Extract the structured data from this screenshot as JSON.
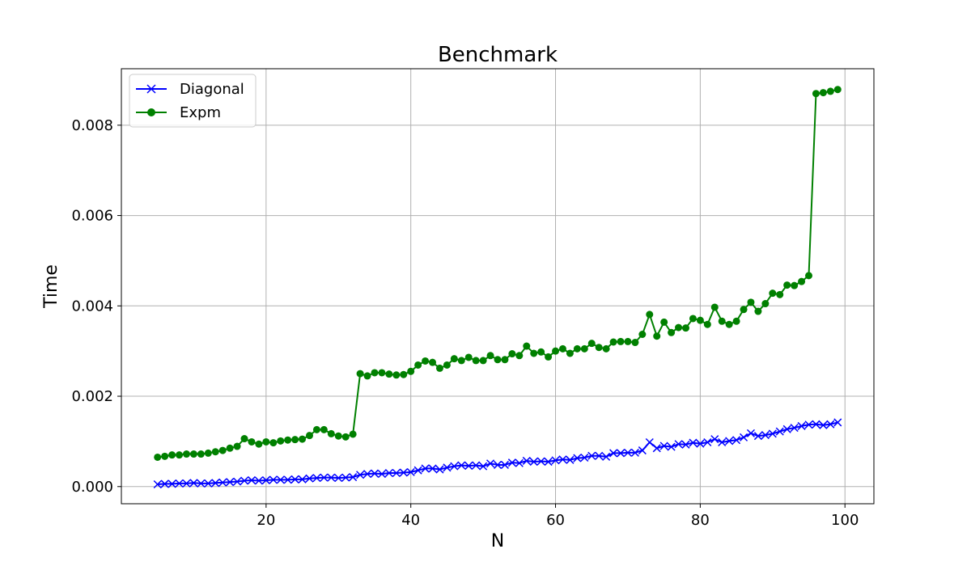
{
  "chart_data": {
    "type": "line",
    "title": "Benchmark",
    "xlabel": "N",
    "ylabel": "Time",
    "xlim": [
      0,
      104
    ],
    "ylim": [
      -0.00038,
      0.00925
    ],
    "xticks": [
      20,
      40,
      60,
      80,
      100
    ],
    "yticks": [
      0.0,
      0.002,
      0.004,
      0.006,
      0.008
    ],
    "ytick_labels": [
      "0.000",
      "0.002",
      "0.004",
      "0.006",
      "0.008"
    ],
    "grid": true,
    "legend_position": "upper-left",
    "x": [
      5,
      6,
      7,
      8,
      9,
      10,
      11,
      12,
      13,
      14,
      15,
      16,
      17,
      18,
      19,
      20,
      21,
      22,
      23,
      24,
      25,
      26,
      27,
      28,
      29,
      30,
      31,
      32,
      33,
      34,
      35,
      36,
      37,
      38,
      39,
      40,
      41,
      42,
      43,
      44,
      45,
      46,
      47,
      48,
      49,
      50,
      51,
      52,
      53,
      54,
      55,
      56,
      57,
      58,
      59,
      60,
      61,
      62,
      63,
      64,
      65,
      66,
      67,
      68,
      69,
      70,
      71,
      72,
      73,
      74,
      75,
      76,
      77,
      78,
      79,
      80,
      81,
      82,
      83,
      84,
      85,
      86,
      87,
      88,
      89,
      90,
      91,
      92,
      93,
      94,
      95,
      96,
      97,
      98,
      99
    ],
    "series": [
      {
        "name": "Diagonal",
        "color": "#0000ff",
        "marker": "x",
        "values": [
          5e-05,
          6e-05,
          6e-05,
          7e-05,
          7e-05,
          8e-05,
          7e-05,
          7e-05,
          8e-05,
          9e-05,
          0.0001,
          0.00011,
          0.00013,
          0.00014,
          0.00013,
          0.00014,
          0.00015,
          0.00015,
          0.00015,
          0.00016,
          0.00016,
          0.00018,
          0.00019,
          0.0002,
          0.0002,
          0.00019,
          0.0002,
          0.00021,
          0.00026,
          0.00028,
          0.00029,
          0.00028,
          0.0003,
          0.0003,
          0.00031,
          0.00032,
          0.00036,
          0.0004,
          0.0004,
          0.00038,
          0.00042,
          0.00045,
          0.00047,
          0.00046,
          0.00047,
          0.00045,
          0.00051,
          0.00048,
          0.00048,
          0.00053,
          0.00052,
          0.00057,
          0.00055,
          0.00056,
          0.00055,
          0.00058,
          0.0006,
          0.00059,
          0.00063,
          0.00064,
          0.00068,
          0.00068,
          0.00066,
          0.00074,
          0.00074,
          0.00075,
          0.00075,
          0.0008,
          0.00098,
          0.00085,
          0.0009,
          0.00088,
          0.00094,
          0.00093,
          0.00097,
          0.00095,
          0.00098,
          0.00105,
          0.00098,
          0.00101,
          0.00103,
          0.00109,
          0.00118,
          0.00112,
          0.00114,
          0.00117,
          0.00122,
          0.00127,
          0.0013,
          0.00134,
          0.00137,
          0.00138,
          0.00136,
          0.00138,
          0.00142
        ]
      },
      {
        "name": "Expm",
        "color": "#008000",
        "marker": "o",
        "values": [
          0.00065,
          0.00067,
          0.0007,
          0.0007,
          0.00072,
          0.00072,
          0.00072,
          0.00074,
          0.00077,
          0.0008,
          0.00085,
          0.00089,
          0.00106,
          0.00099,
          0.00094,
          0.00099,
          0.00097,
          0.00101,
          0.00103,
          0.00104,
          0.00105,
          0.00113,
          0.00126,
          0.00126,
          0.00117,
          0.00112,
          0.0011,
          0.00116,
          0.0025,
          0.00245,
          0.00252,
          0.00252,
          0.00249,
          0.00247,
          0.00248,
          0.00255,
          0.00269,
          0.00278,
          0.00275,
          0.00262,
          0.00269,
          0.00283,
          0.00279,
          0.00286,
          0.00279,
          0.00279,
          0.0029,
          0.00281,
          0.00281,
          0.00294,
          0.0029,
          0.00311,
          0.00295,
          0.00298,
          0.00287,
          0.003,
          0.00305,
          0.00295,
          0.00305,
          0.00305,
          0.00317,
          0.00308,
          0.00305,
          0.0032,
          0.00321,
          0.00321,
          0.00319,
          0.00337,
          0.00381,
          0.00333,
          0.00364,
          0.00341,
          0.00352,
          0.00351,
          0.00372,
          0.00368,
          0.00359,
          0.00397,
          0.00366,
          0.00359,
          0.00366,
          0.00392,
          0.00408,
          0.00388,
          0.00405,
          0.00428,
          0.00425,
          0.00446,
          0.00445,
          0.00454,
          0.00467,
          0.0087,
          0.00872,
          0.00875,
          0.00879
        ]
      }
    ]
  }
}
